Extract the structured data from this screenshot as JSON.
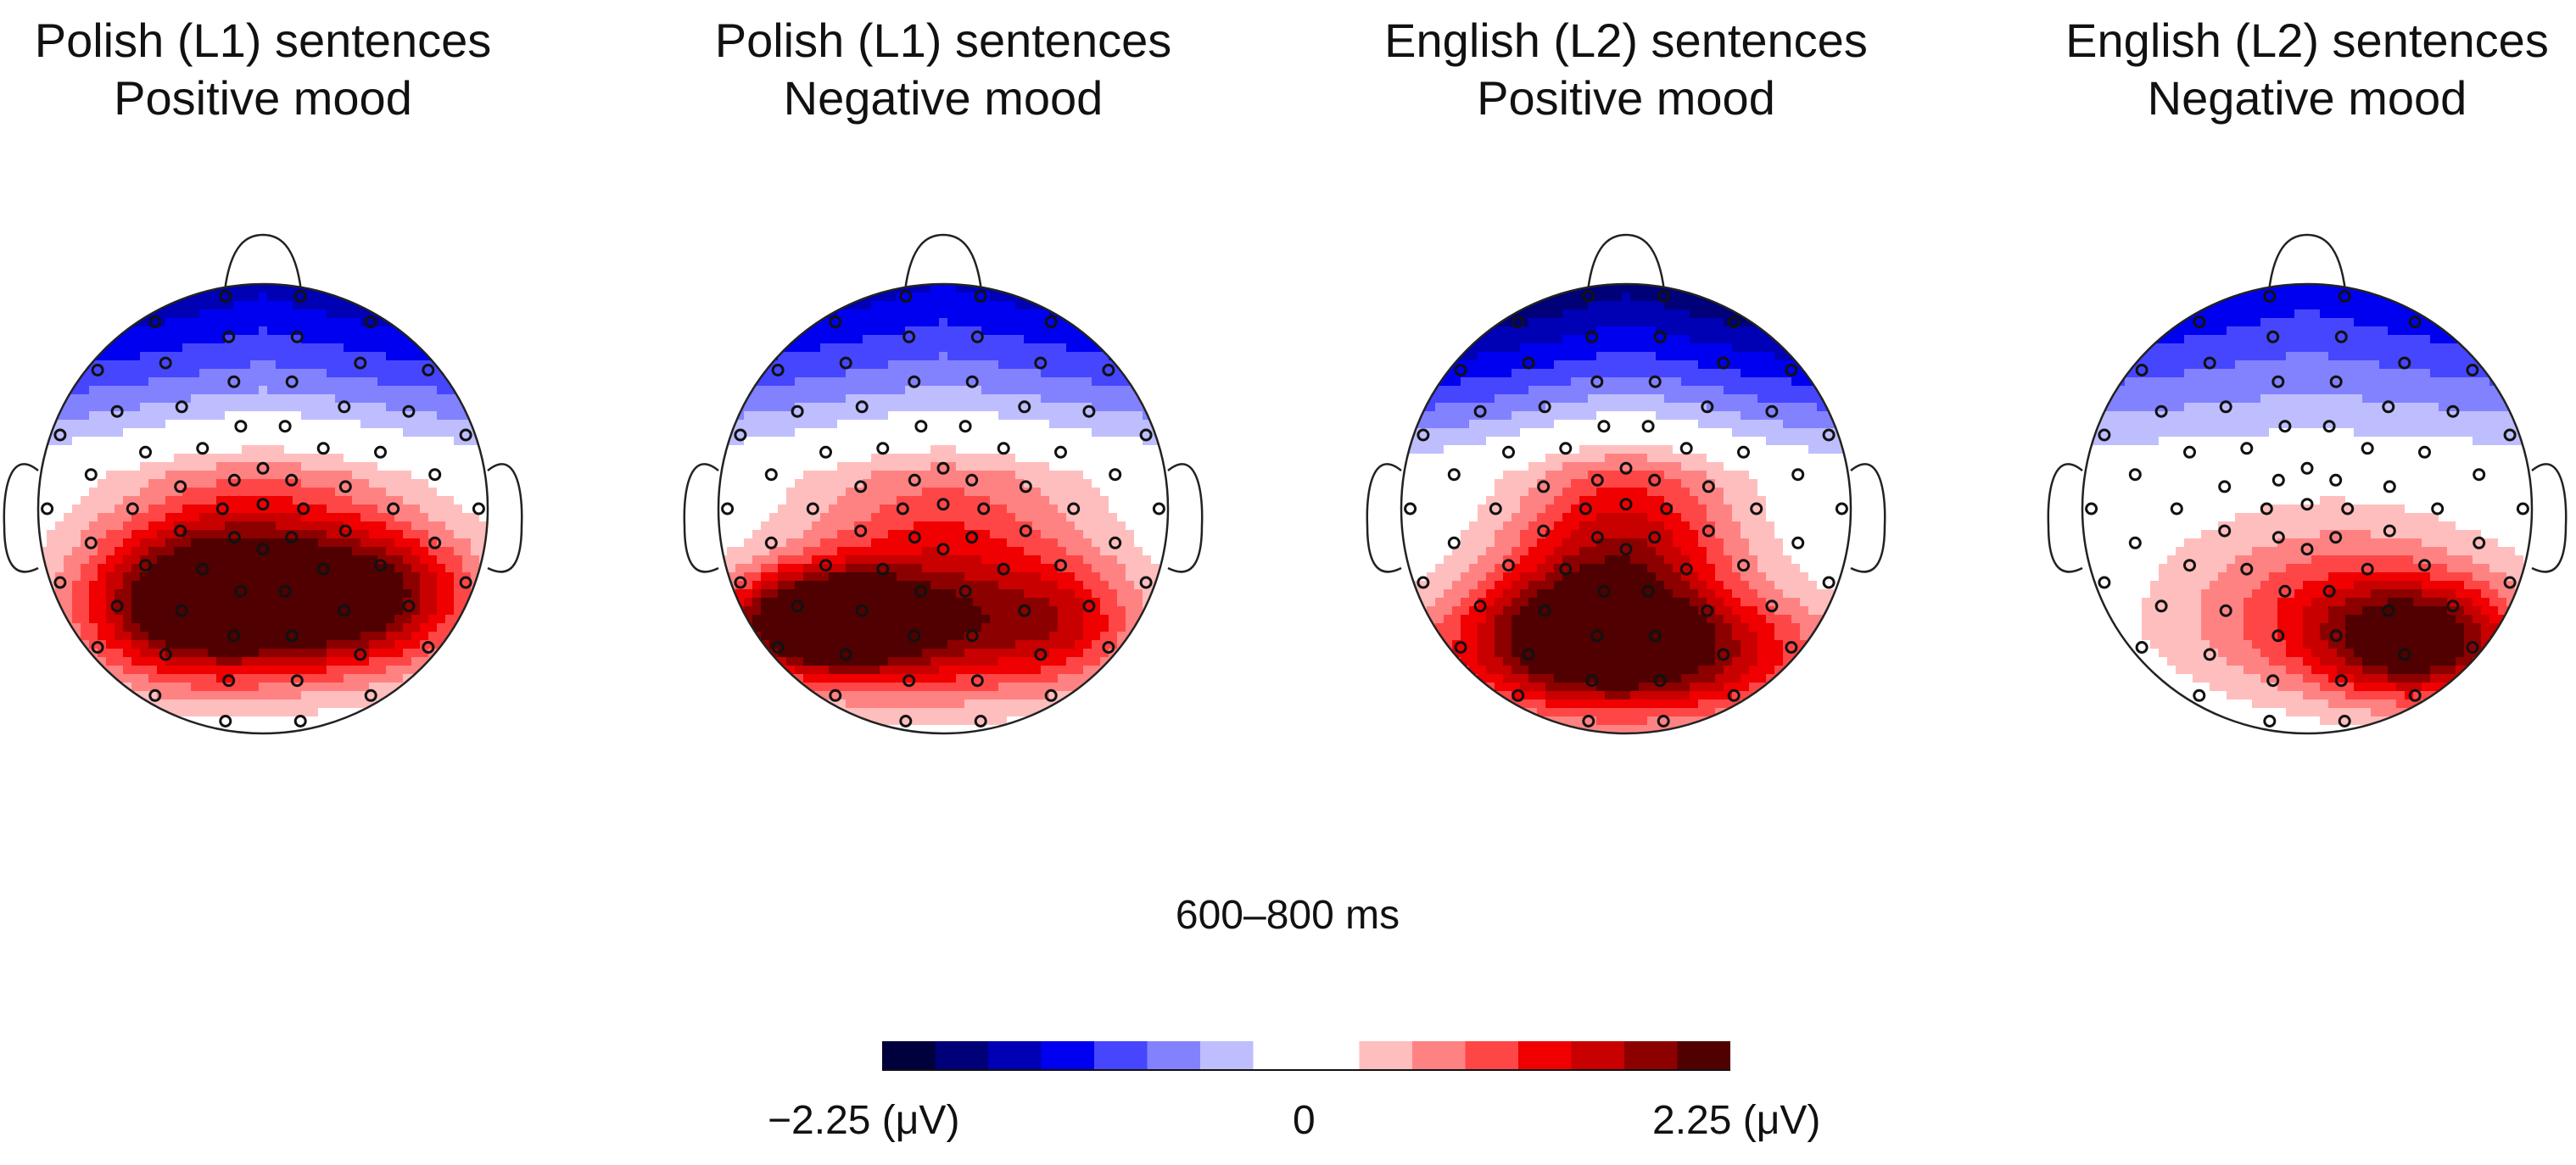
{
  "panels": [
    {
      "title_line1": "Polish (L1) sentences",
      "title_line2": "Positive mood",
      "map": {
        "front": -1.5,
        "blobs": [
          {
            "x": 0.05,
            "y": -0.45,
            "amp": 2.1,
            "sx": 0.5,
            "sy": 0.22
          },
          {
            "x": -0.4,
            "y": -0.42,
            "amp": 1.0,
            "sx": 0.3,
            "sy": 0.25
          },
          {
            "x": 0.55,
            "y": -0.35,
            "amp": 0.8,
            "sx": 0.3,
            "sy": 0.2
          },
          {
            "x": 0.0,
            "y": -0.1,
            "amp": 1.0,
            "sx": 0.45,
            "sy": 0.3
          }
        ]
      }
    },
    {
      "title_line1": "Polish (L1) sentences",
      "title_line2": "Negative mood",
      "map": {
        "front": -1.4,
        "blobs": [
          {
            "x": -0.55,
            "y": -0.5,
            "amp": 2.4,
            "sx": 0.28,
            "sy": 0.15
          },
          {
            "x": -0.1,
            "y": -0.55,
            "amp": 1.5,
            "sx": 0.5,
            "sy": 0.22
          },
          {
            "x": 0.55,
            "y": -0.5,
            "amp": 0.8,
            "sx": 0.25,
            "sy": 0.2
          },
          {
            "x": 0.0,
            "y": -0.1,
            "amp": 1.0,
            "sx": 0.45,
            "sy": 0.3
          }
        ]
      }
    },
    {
      "title_line1": "English (L2) sentences",
      "title_line2": "Positive mood",
      "map": {
        "front": -1.8,
        "blobs": [
          {
            "x": 0.0,
            "y": -0.65,
            "amp": 2.0,
            "sx": 0.6,
            "sy": 0.2
          },
          {
            "x": 0.0,
            "y": -0.2,
            "amp": 1.6,
            "sx": 0.35,
            "sy": 0.35
          },
          {
            "x": -0.35,
            "y": -0.45,
            "amp": 0.6,
            "sx": 0.3,
            "sy": 0.2
          }
        ]
      }
    },
    {
      "title_line1": "English (L2) sentences",
      "title_line2": "Negative mood",
      "map": {
        "front": -1.3,
        "blobs": [
          {
            "x": 0.5,
            "y": -0.6,
            "amp": 1.7,
            "sx": 0.3,
            "sy": 0.18
          },
          {
            "x": 0.2,
            "y": -0.55,
            "amp": 0.9,
            "sx": 0.55,
            "sy": 0.22
          },
          {
            "x": 0.1,
            "y": -0.25,
            "amp": 0.5,
            "sx": 0.5,
            "sy": 0.25
          }
        ]
      }
    }
  ],
  "time_window": "600–800 ms",
  "colorbar": {
    "min": -2.25,
    "max": 2.25,
    "min_label": "−2.25 (μV)",
    "zero_label": "0",
    "max_label": "2.25 (μV)",
    "colors": [
      "#00003c",
      "#000078",
      "#0000b4",
      "#0000f0",
      "#4646ff",
      "#8282ff",
      "#bebeff",
      "#ffffff",
      "#ffffff",
      "#ffbebe",
      "#ff8282",
      "#ff4646",
      "#f00000",
      "#c80000",
      "#8c0000",
      "#500000"
    ]
  }
}
